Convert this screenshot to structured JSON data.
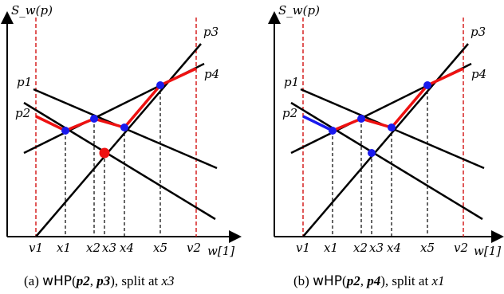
{
  "panels": [
    {
      "id": "a",
      "ylabel": "S_w(p)",
      "xlabel": "w[1]",
      "line_labels": [
        "p1",
        "p2",
        "p3",
        "p4"
      ],
      "x_labels": [
        "v1",
        "x1",
        "x2",
        "x3",
        "x4",
        "x5",
        "v2"
      ],
      "caption": {
        "prefix": "(a) ",
        "func": "wHP",
        "args": [
          "p2",
          "p3"
        ],
        "suffix": ", split at ",
        "split": "x3"
      }
    },
    {
      "id": "b",
      "ylabel": "S_w(p)",
      "xlabel": "w[1]",
      "line_labels": [
        "p1",
        "p2",
        "p3",
        "p4"
      ],
      "x_labels": [
        "v1",
        "x1",
        "x2",
        "x3",
        "x4",
        "x5",
        "v2"
      ],
      "caption": {
        "prefix": "(b) ",
        "func": "wHP",
        "args": [
          "p2",
          "p4"
        ],
        "suffix": ", split at ",
        "split": "x1"
      }
    }
  ],
  "colors": {
    "line": "#000000",
    "highlight": "#ee1111",
    "lower": "#1a1aee",
    "point_blue": "#1a1aee",
    "point_red": "#ee1111",
    "bound": "#d62020"
  }
}
